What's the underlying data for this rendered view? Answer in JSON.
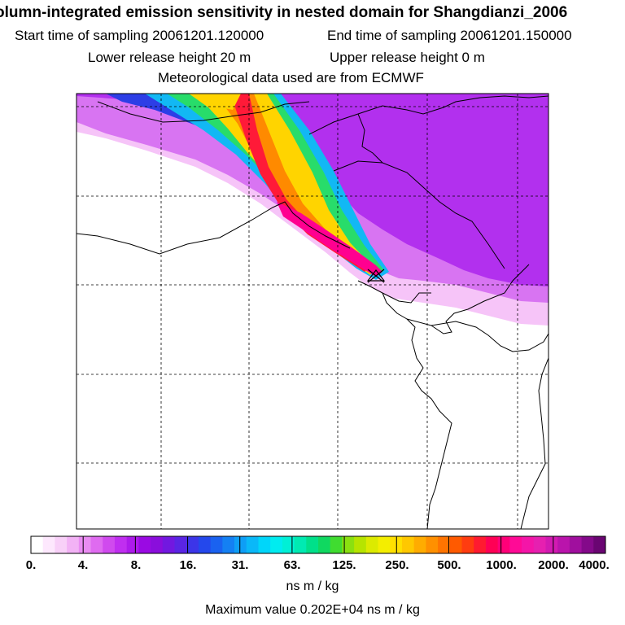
{
  "header": {
    "title": "olumn-integrated emission sensitivity in nested domain for Shangdianzi_2006",
    "start_label": "Start time of sampling 20061201.120000",
    "end_label": "End time of sampling 20061201.150000",
    "lower_label": "Lower release height   20 m",
    "upper_label": "Upper release height    0 m",
    "met_label": "Meteorological data used are from ECMWF"
  },
  "map": {
    "station": "Shangdianzi",
    "plume_colors": [
      "#f0a0ff",
      "#c040ff",
      "#9000e8",
      "#2030e0",
      "#00b0ff",
      "#00e0c8",
      "#30e060",
      "#d8f000",
      "#ffd000",
      "#ff8000",
      "#ff1060"
    ]
  },
  "legend": {
    "tick_labels": [
      "0.",
      "4.",
      "8.",
      "16.",
      "31.",
      "63.",
      "125.",
      "250.",
      "500.",
      "1000.",
      "2000.",
      "4000."
    ],
    "colors": [
      "#ffffff",
      "#fde8fd",
      "#f8d0f8",
      "#f2b2f5",
      "#e98cf2",
      "#df6bf0",
      "#d04aee",
      "#c02ef0",
      "#ad1aeb",
      "#9a0ae3",
      "#8a0edc",
      "#7218e0",
      "#5a25e4",
      "#3c35e8",
      "#2448ec",
      "#1a62f0",
      "#1480f3",
      "#0e9ef6",
      "#0ab8f8",
      "#00d6fa",
      "#00ecf0",
      "#00f0d6",
      "#00eab2",
      "#00e08a",
      "#10d860",
      "#40dc30",
      "#8ae010",
      "#b6e400",
      "#dcea00",
      "#f4ee00",
      "#ffe000",
      "#ffc800",
      "#ffac00",
      "#ff9000",
      "#ff7400",
      "#ff5a00",
      "#ff3c10",
      "#ff1a30",
      "#ff0055",
      "#ff0078",
      "#ff0a96",
      "#f415a8",
      "#e620b0",
      "#d21ab2",
      "#ba14ac",
      "#a00f9e",
      "#84098a",
      "#6a0572"
    ],
    "unit": "ns m / kg",
    "max_value_text": "Maximum value  0.202E+04 ns m / kg"
  },
  "colors": {
    "frame": "#000000",
    "grid": "#000000",
    "coast": "#000000"
  }
}
